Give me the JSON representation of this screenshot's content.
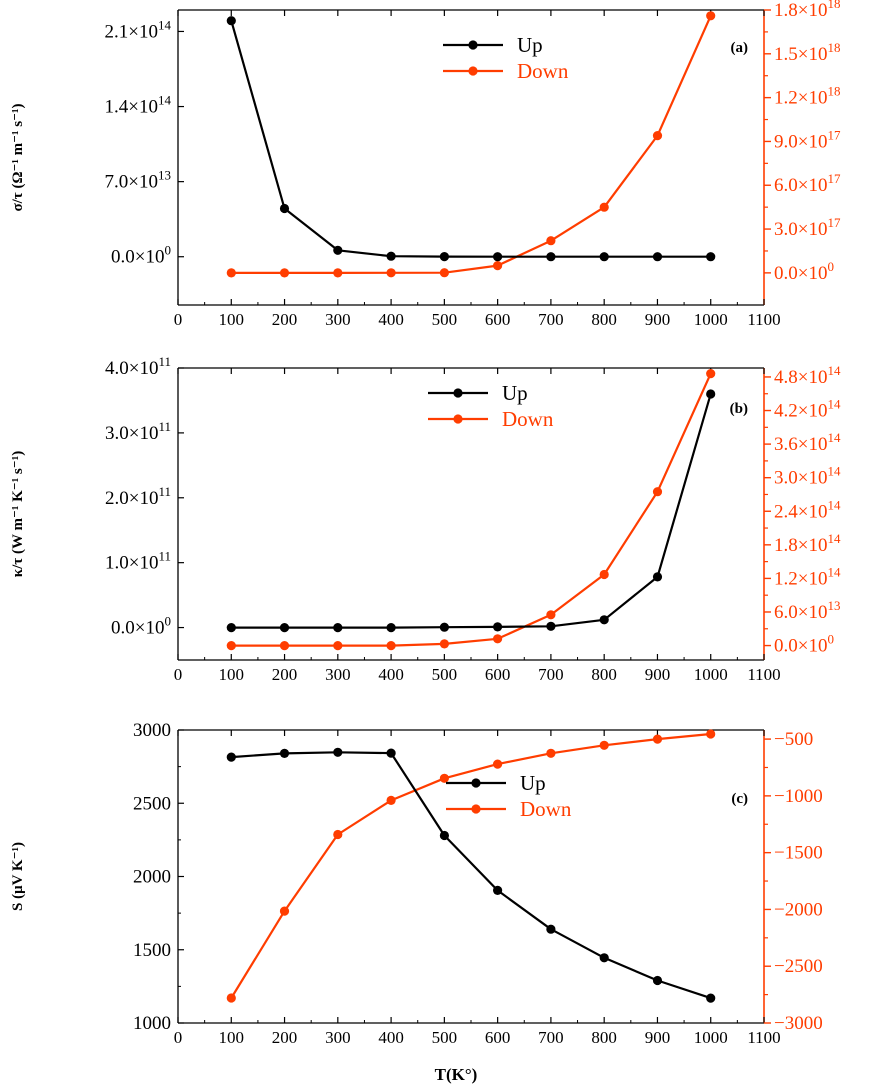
{
  "colors": {
    "up": "#000000",
    "down": "#ff3d00",
    "axis": "#000000"
  },
  "chart_data": [
    {
      "type": "line",
      "panel": "(a)",
      "ylabel": "σ/τ (Ω⁻¹ m⁻¹ s⁻¹)",
      "xlabel": "",
      "x": [
        100,
        200,
        300,
        400,
        500,
        600,
        700,
        800,
        900,
        1000
      ],
      "xlim": [
        0,
        1100
      ],
      "xticks": [
        0,
        100,
        200,
        300,
        400,
        500,
        600,
        700,
        800,
        900,
        1000,
        1100
      ],
      "xtick_labels": [
        "0",
        "100",
        "200",
        "300",
        "400",
        "500",
        "600",
        "700",
        "800",
        "900",
        "1000",
        "1100"
      ],
      "ylim_left": [
        -45000000000000.0,
        230000000000000.0
      ],
      "yticks_left": [
        0,
        70000000000000.0,
        140000000000000.0,
        210000000000000.0
      ],
      "yticks_left_base": [
        "0.0×10",
        "7.0×10",
        "1.4×10",
        "2.1×10"
      ],
      "yticks_left_exp": [
        "0",
        "13",
        "14",
        "14"
      ],
      "ylim_right": [
        -2.2e+17,
        1.8e+18
      ],
      "yticks_right": [
        0,
        3e+17,
        6e+17,
        9e+17,
        1.2e+18,
        1.5e+18,
        1.8e+18
      ],
      "yticks_right_base": [
        "0.0×10",
        "3.0×10",
        "6.0×10",
        "9.0×10",
        "1.2×10",
        "1.5×10",
        "1.8×10"
      ],
      "yticks_right_exp": [
        "0",
        "17",
        "17",
        "17",
        "18",
        "18",
        "18"
      ],
      "legend": [
        "Up",
        "Down"
      ],
      "legend_position": "top-center",
      "series": [
        {
          "name": "Up",
          "axis": "left",
          "values": [
            220000000000000.0,
            45000000000000.0,
            6000000000000.0,
            500000000000.0,
            100000000000.0,
            50000000000.0,
            20000000000.0,
            10000000000.0,
            5000000000.0,
            3000000000.0
          ]
        },
        {
          "name": "Down",
          "axis": "right",
          "values": [
            0,
            0,
            100000000000000.0,
            300000000000000.0,
            1000000000000000.0,
            5e+16,
            2.2e+17,
            4.5e+17,
            9.4e+17,
            1.76e+18
          ]
        }
      ]
    },
    {
      "type": "line",
      "panel": "(b)",
      "ylabel": "κ/τ (W m⁻¹ K⁻¹ s⁻¹)",
      "xlabel": "",
      "x": [
        100,
        200,
        300,
        400,
        500,
        600,
        700,
        800,
        900,
        1000
      ],
      "xlim": [
        0,
        1100
      ],
      "xticks": [
        0,
        100,
        200,
        300,
        400,
        500,
        600,
        700,
        800,
        900,
        1000,
        1100
      ],
      "xtick_labels": [
        "0",
        "100",
        "200",
        "300",
        "400",
        "500",
        "600",
        "700",
        "800",
        "900",
        "1000",
        "1100"
      ],
      "ylim_left": [
        -50000000000.0,
        400000000000.0
      ],
      "yticks_left": [
        0,
        100000000000.0,
        200000000000.0,
        300000000000.0,
        400000000000.0
      ],
      "yticks_left_base": [
        "0.0×10",
        "1.0×10",
        "2.0×10",
        "3.0×10",
        "4.0×10"
      ],
      "yticks_left_exp": [
        "0",
        "11",
        "11",
        "11",
        "11"
      ],
      "ylim_right": [
        -25800000000000.0,
        496000000000000.0
      ],
      "yticks_right": [
        0,
        60000000000000.0,
        120000000000000.0,
        180000000000000.0,
        240000000000000.0,
        300000000000000.0,
        360000000000000.0,
        420000000000000.0,
        480000000000000.0
      ],
      "yticks_right_base": [
        "0.0×10",
        "6.0×10",
        "1.2×10",
        "1.8×10",
        "2.4×10",
        "3.0×10",
        "3.6×10",
        "4.2×10",
        "4.8×10"
      ],
      "yticks_right_exp": [
        "0",
        "13",
        "14",
        "14",
        "14",
        "14",
        "14",
        "14",
        "14"
      ],
      "legend": [
        "Up",
        "Down"
      ],
      "legend_position": "top-right",
      "series": [
        {
          "name": "Up",
          "axis": "left",
          "values": [
            0,
            0,
            0,
            0,
            500000000.0,
            1000000000.0,
            2000000000.0,
            12000000000.0,
            78000000000.0,
            360000000000.0
          ]
        },
        {
          "name": "Down",
          "axis": "right",
          "values": [
            0,
            0,
            0,
            0,
            3000000000000.0,
            12000000000000.0,
            55000000000000.0,
            127000000000000.0,
            275000000000000.0,
            486000000000000.0
          ]
        }
      ]
    },
    {
      "type": "line",
      "panel": "(c)",
      "ylabel": "S (μV K⁻¹)",
      "xlabel": "T(K°)",
      "x": [
        100,
        200,
        300,
        400,
        500,
        600,
        700,
        800,
        900,
        1000
      ],
      "xlim": [
        0,
        1100
      ],
      "xticks": [
        0,
        100,
        200,
        300,
        400,
        500,
        600,
        700,
        800,
        900,
        1000,
        1100
      ],
      "xtick_labels": [
        "0",
        "100",
        "200",
        "300",
        "400",
        "500",
        "600",
        "700",
        "800",
        "900",
        "1000",
        "1100"
      ],
      "ylim_left": [
        1000,
        3000
      ],
      "yticks_left": [
        1000,
        1500,
        2000,
        2500,
        3000
      ],
      "yticks_left_labels": [
        "1000",
        "1500",
        "2000",
        "2500",
        "3000"
      ],
      "ylim_right": [
        -3000,
        -420
      ],
      "yticks_right": [
        -3000,
        -2500,
        -2000,
        -1500,
        -1000,
        -500
      ],
      "yticks_right_labels": [
        "−3000",
        "−2500",
        "−2000",
        "−1500",
        "−1000",
        "−500"
      ],
      "legend": [
        "Up",
        "Down"
      ],
      "legend_position": "center-right",
      "series": [
        {
          "name": "Up",
          "axis": "left",
          "values": [
            2815,
            2840,
            2848,
            2842,
            2280,
            1905,
            1640,
            1445,
            1290,
            1170
          ]
        },
        {
          "name": "Down",
          "axis": "right",
          "values": [
            -2780,
            -2015,
            -1340,
            -1040,
            -845,
            -720,
            -625,
            -555,
            -500,
            -455
          ]
        }
      ]
    }
  ]
}
